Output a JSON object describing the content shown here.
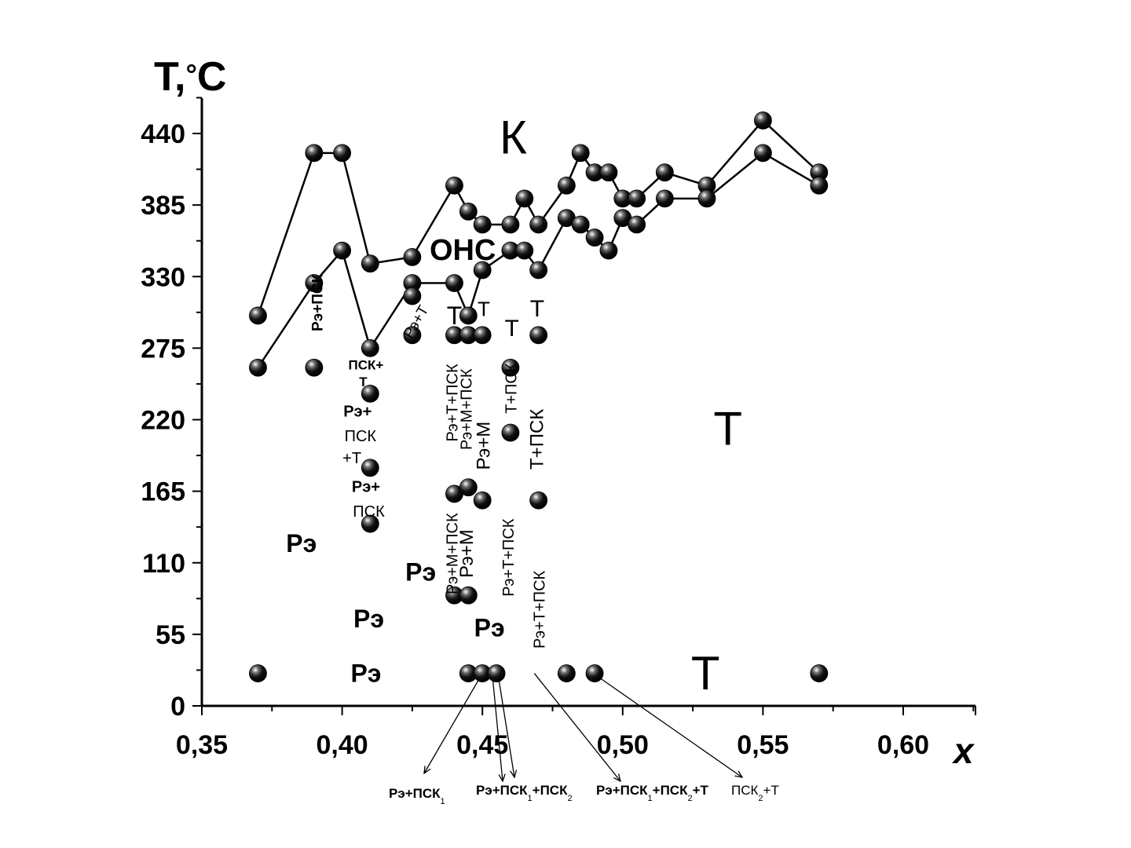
{
  "chart_data": {
    "type": "scatter",
    "xlabel": "x",
    "ylabel": "T,°C",
    "xlim": [
      0.35,
      0.625
    ],
    "ylim": [
      0,
      460
    ],
    "xticks": [
      "0,35",
      "0,40",
      "0,45",
      "0,50",
      "0,55",
      "0,60"
    ],
    "xtick_values": [
      0.35,
      0.4,
      0.45,
      0.5,
      0.55,
      0.6
    ],
    "yticks": [
      "0",
      "55",
      "110",
      "165",
      "220",
      "275",
      "330",
      "385",
      "440"
    ],
    "ytick_values": [
      0,
      55,
      110,
      165,
      220,
      275,
      330,
      385,
      440
    ],
    "lines": [
      {
        "points": [
          [
            0.37,
            300
          ],
          [
            0.39,
            425
          ],
          [
            0.4,
            425
          ],
          [
            0.41,
            340
          ],
          [
            0.425,
            345
          ],
          [
            0.44,
            400
          ],
          [
            0.445,
            380
          ],
          [
            0.45,
            370
          ],
          [
            0.46,
            370
          ],
          [
            0.465,
            390
          ],
          [
            0.47,
            370
          ],
          [
            0.48,
            400
          ],
          [
            0.485,
            425
          ],
          [
            0.49,
            410
          ],
          [
            0.495,
            410
          ],
          [
            0.5,
            390
          ],
          [
            0.505,
            390
          ],
          [
            0.515,
            410
          ],
          [
            0.53,
            400
          ],
          [
            0.55,
            450
          ],
          [
            0.57,
            410
          ]
        ]
      },
      {
        "points": [
          [
            0.37,
            260
          ],
          [
            0.39,
            325
          ],
          [
            0.4,
            350
          ],
          [
            0.41,
            275
          ],
          [
            0.425,
            325
          ],
          [
            0.44,
            325
          ],
          [
            0.445,
            300
          ],
          [
            0.45,
            335
          ],
          [
            0.46,
            350
          ],
          [
            0.465,
            350
          ],
          [
            0.47,
            335
          ],
          [
            0.48,
            375
          ],
          [
            0.485,
            370
          ],
          [
            0.49,
            360
          ],
          [
            0.495,
            350
          ],
          [
            0.5,
            375
          ],
          [
            0.505,
            370
          ],
          [
            0.515,
            390
          ],
          [
            0.53,
            390
          ],
          [
            0.55,
            425
          ],
          [
            0.57,
            400
          ]
        ]
      }
    ],
    "points": [
      [
        0.39,
        260
      ],
      [
        0.41,
        240
      ],
      [
        0.425,
        315
      ],
      [
        0.425,
        285
      ],
      [
        0.44,
        285
      ],
      [
        0.445,
        285
      ],
      [
        0.45,
        285
      ],
      [
        0.46,
        260
      ],
      [
        0.46,
        210
      ],
      [
        0.47,
        285
      ],
      [
        0.41,
        183
      ],
      [
        0.41,
        140
      ],
      [
        0.44,
        163
      ],
      [
        0.445,
        168
      ],
      [
        0.45,
        158
      ],
      [
        0.47,
        158
      ],
      [
        0.44,
        85
      ],
      [
        0.445,
        85
      ],
      [
        0.37,
        25
      ],
      [
        0.445,
        25
      ],
      [
        0.45,
        25
      ],
      [
        0.455,
        25
      ],
      [
        0.48,
        25
      ],
      [
        0.49,
        25
      ],
      [
        0.57,
        25
      ]
    ],
    "annotations": [
      {
        "text": "К",
        "x": 0.461,
        "y": 437,
        "size": 60,
        "weight": "normal",
        "rotate": 0
      },
      {
        "text": "ОНС",
        "x": 0.443,
        "y": 350,
        "size": 38,
        "weight": "bold",
        "rotate": 0
      },
      {
        "text": "Т",
        "x": 0.44,
        "y": 300,
        "size": 32,
        "weight": "normal",
        "rotate": 0
      },
      {
        "text": "Т",
        "x": 0.4505,
        "y": 305,
        "size": 26,
        "weight": "normal",
        "rotate": 0
      },
      {
        "text": "Т",
        "x": 0.4605,
        "y": 290,
        "size": 30,
        "weight": "normal",
        "rotate": 0
      },
      {
        "text": "Т",
        "x": 0.4695,
        "y": 305,
        "size": 30,
        "weight": "normal",
        "rotate": 0
      },
      {
        "text": "Т",
        "x": 0.5375,
        "y": 213,
        "size": 60,
        "weight": "normal",
        "rotate": 0
      },
      {
        "text": "Т",
        "x": 0.5295,
        "y": 25,
        "size": 60,
        "weight": "normal",
        "rotate": 0
      },
      {
        "text": "Рэ",
        "x": 0.3855,
        "y": 125,
        "size": 32,
        "weight": "bold",
        "rotate": 0
      },
      {
        "text": "Рэ",
        "x": 0.428,
        "y": 103,
        "size": 32,
        "weight": "bold",
        "rotate": 0
      },
      {
        "text": "Рэ",
        "x": 0.4095,
        "y": 67,
        "size": 32,
        "weight": "bold",
        "rotate": 0
      },
      {
        "text": "Рэ",
        "x": 0.4525,
        "y": 60,
        "size": 32,
        "weight": "bold",
        "rotate": 0
      },
      {
        "text": "Рэ",
        "x": 0.4085,
        "y": 25,
        "size": 32,
        "weight": "bold",
        "rotate": 0
      },
      {
        "text": "Рэ+ПСК",
        "x": 0.3915,
        "y": 310,
        "size": 19,
        "weight": "bold",
        "rotate": -90
      },
      {
        "text": "Рэ+Т",
        "x": 0.4265,
        "y": 295,
        "size": 19,
        "weight": "normal",
        "rotate": -60
      },
      {
        "text": "ПСК+",
        "x": 0.4085,
        "y": 262,
        "size": 17,
        "weight": "bold",
        "rotate": 0
      },
      {
        "text": "Т",
        "x": 0.4075,
        "y": 249,
        "size": 17,
        "weight": "bold",
        "rotate": 0
      },
      {
        "text": "Рэ+",
        "x": 0.4055,
        "y": 226,
        "size": 20,
        "weight": "bold",
        "rotate": 0
      },
      {
        "text": "ПСК",
        "x": 0.4065,
        "y": 207,
        "size": 20,
        "weight": "normal",
        "rotate": 0
      },
      {
        "text": "+Т",
        "x": 0.4035,
        "y": 190,
        "size": 20,
        "weight": "normal",
        "rotate": 0
      },
      {
        "text": "Рэ+",
        "x": 0.4085,
        "y": 168,
        "size": 20,
        "weight": "bold",
        "rotate": 0
      },
      {
        "text": "ПСК",
        "x": 0.4095,
        "y": 149,
        "size": 20,
        "weight": "normal",
        "rotate": 0
      },
      {
        "text": "Рэ+Т+ПСК",
        "x": 0.4395,
        "y": 233,
        "size": 20,
        "weight": "normal",
        "rotate": -90
      },
      {
        "text": "Рэ+М+ПСК",
        "x": 0.4445,
        "y": 228,
        "size": 20,
        "weight": "normal",
        "rotate": -90
      },
      {
        "text": "Рэ+М",
        "x": 0.4505,
        "y": 200,
        "size": 24,
        "weight": "normal",
        "rotate": -90
      },
      {
        "text": "Т+ПСК",
        "x": 0.4605,
        "y": 244,
        "size": 20,
        "weight": "normal",
        "rotate": -90
      },
      {
        "text": "Т+ПСК",
        "x": 0.4695,
        "y": 205,
        "size": 24,
        "weight": "normal",
        "rotate": -90
      },
      {
        "text": "Рэ+М+ПСК",
        "x": 0.4395,
        "y": 117,
        "size": 20,
        "weight": "normal",
        "rotate": -90
      },
      {
        "text": "Рэ+М",
        "x": 0.4445,
        "y": 117,
        "size": 24,
        "weight": "normal",
        "rotate": -90
      },
      {
        "text": "Рэ+Т+ПСК",
        "x": 0.4595,
        "y": 114,
        "size": 20,
        "weight": "normal",
        "rotate": -90
      },
      {
        "text": "Рэ+Т+ПСК",
        "x": 0.4705,
        "y": 74,
        "size": 20,
        "weight": "normal",
        "rotate": -90
      }
    ],
    "bottom_labels": [
      {
        "main": "Рэ+ПСК",
        "sub": "1",
        "tail": ""
      },
      {
        "main": "Рэ+ПСК",
        "sub": "1",
        "tail": "+ПСК",
        "sub2": "2"
      },
      {
        "main": "Рэ+ПСК",
        "sub": "1",
        "tail": "+ПСК",
        "sub2": "2",
        "tail2": "+Т"
      },
      {
        "main": "ПСК",
        "sub": "2",
        "tail": "+Т"
      }
    ]
  }
}
